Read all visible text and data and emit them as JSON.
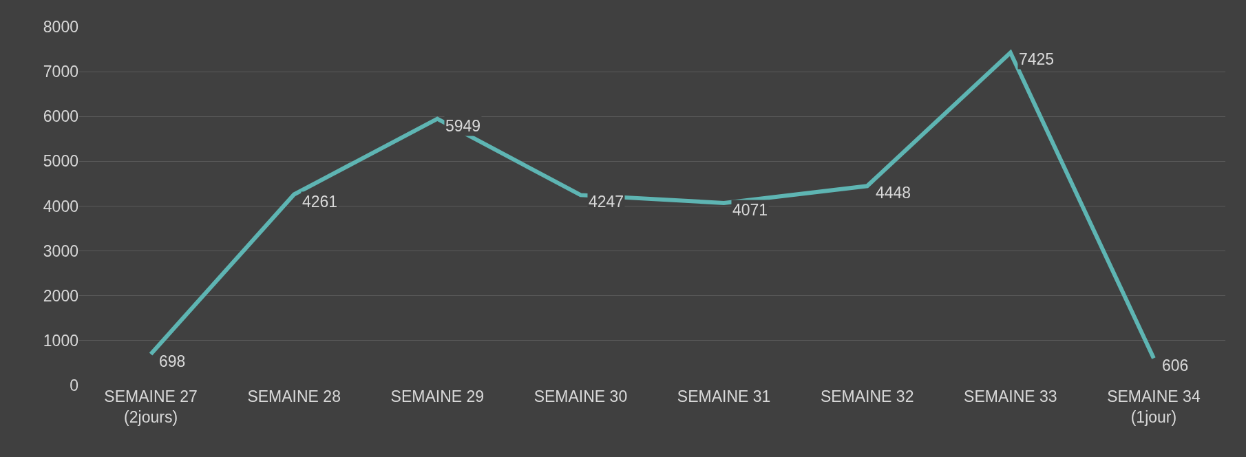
{
  "chart_data": {
    "type": "line",
    "categories": [
      "SEMAINE 27\n(2jours)",
      "SEMAINE 28",
      "SEMAINE 29",
      "SEMAINE 30",
      "SEMAINE 31",
      "SEMAINE 32",
      "SEMAINE 33",
      "SEMAINE 34\n(1jour)"
    ],
    "series": [
      {
        "color": "#5eb5b3",
        "values": [
          698,
          4261,
          5949,
          4247,
          4071,
          4448,
          7425,
          606
        ]
      }
    ],
    "ylim": [
      0,
      8000
    ],
    "yticks": [
      0,
      1000,
      2000,
      3000,
      4000,
      5000,
      6000,
      7000,
      8000
    ],
    "grid": "y",
    "marker": "none",
    "line_style": "solid",
    "data_labels": true
  }
}
